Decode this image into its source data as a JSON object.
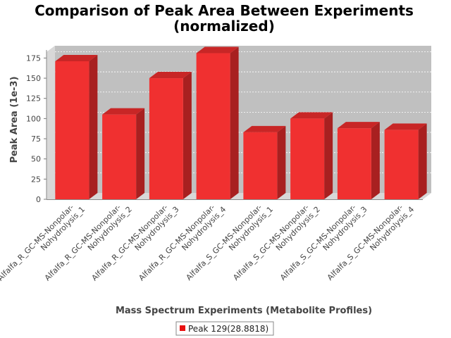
{
  "chart_data": {
    "type": "bar",
    "title_lines": [
      "Comparison of Peak Area Between Experiments",
      "(normalized)"
    ],
    "xlabel": "Mass Spectrum Experiments (Metabolite Profiles)",
    "ylabel": "Peak Area (1e-3)",
    "ylim": [
      0,
      185
    ],
    "yticks": [
      0,
      25,
      50,
      75,
      100,
      125,
      150,
      175
    ],
    "grid": true,
    "legend_position": "bottom",
    "categories": [
      [
        "Alfalfa_R_GC-MS-Nonpolar-",
        "Nohydrolysis_1"
      ],
      [
        "Alfalfa_R_GC-MS-Nonpolar-",
        "Nohydrolysis_2"
      ],
      [
        "Alfalfa_R_GC-MS-Nonpolar-",
        "Nohydrolysis_3"
      ],
      [
        "Alfalfa_R_GC-MS-Nonpolar-",
        "Nohydrolysis_4"
      ],
      [
        "Alfalfa_S_GC-MS-Nonpolar-",
        "Nohydrolysis_1"
      ],
      [
        "Alfalfa_S_GC-MS-Nonpolar-",
        "Nohydrolysis_2"
      ],
      [
        "Alfalfa_S_GC-MS-Nonpolar-",
        "Nohydrolysis_3"
      ],
      [
        "Alfalfa_S_GC-MS-Nonpolar-",
        "Nohydrolysis_4"
      ]
    ],
    "series": [
      {
        "name": "Peak 129(28.8818)",
        "color": "#f03030",
        "values": [
          171,
          105,
          150,
          181,
          83,
          100,
          88,
          86
        ]
      }
    ]
  },
  "colors": {
    "plot_background": "#c0c0c0",
    "plot_wall": "#d8d8d8",
    "bar_front": "#f03030",
    "bar_side": "#a82020",
    "bar_top": "#c82626"
  }
}
